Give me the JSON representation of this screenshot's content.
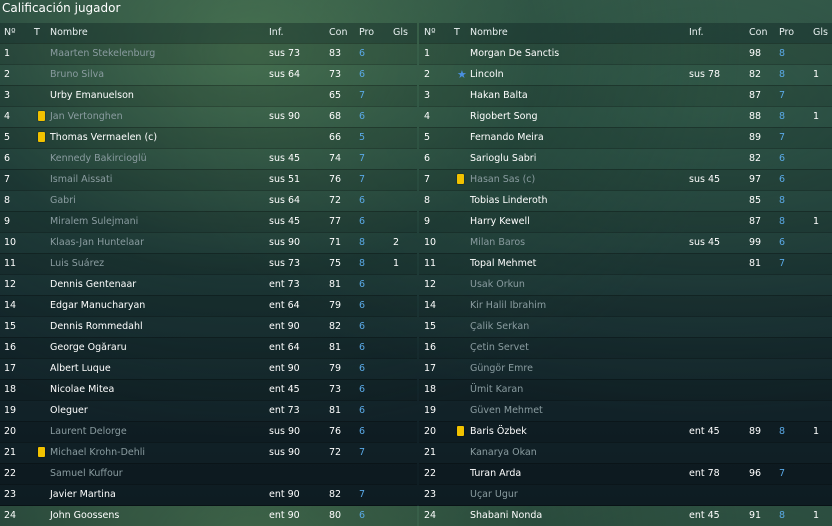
{
  "window": {
    "title": "Calificación jugador"
  },
  "columns": {
    "num": "Nº",
    "t": "T",
    "name": "Nombre",
    "inf": "Inf.",
    "con": "Con",
    "pro": "Pro",
    "gls": "Gls"
  },
  "left": [
    {
      "num": "1",
      "name": "Maarten Stekelenburg",
      "inf": "sus 73",
      "con": "83",
      "pro": "6",
      "gls": "",
      "dim": true,
      "mark": ""
    },
    {
      "num": "2",
      "name": "Bruno Silva",
      "inf": "sus 64",
      "con": "73",
      "pro": "6",
      "gls": "",
      "dim": true,
      "mark": ""
    },
    {
      "num": "3",
      "name": "Urby Emanuelson",
      "inf": "",
      "con": "65",
      "pro": "7",
      "gls": "",
      "dim": false,
      "mark": ""
    },
    {
      "num": "4",
      "name": "Jan Vertonghen",
      "inf": "sus 90",
      "con": "68",
      "pro": "6",
      "gls": "",
      "dim": true,
      "mark": "yellow-card"
    },
    {
      "num": "5",
      "name": "Thomas Vermaelen (c)",
      "inf": "",
      "con": "66",
      "pro": "5",
      "gls": "",
      "dim": false,
      "mark": "yellow-card"
    },
    {
      "num": "6",
      "name": "Kennedy Bakircioglü",
      "inf": "sus 45",
      "con": "74",
      "pro": "7",
      "gls": "",
      "dim": true,
      "mark": ""
    },
    {
      "num": "7",
      "name": "Ismail Aissati",
      "inf": "sus 51",
      "con": "76",
      "pro": "7",
      "gls": "",
      "dim": true,
      "mark": ""
    },
    {
      "num": "8",
      "name": "Gabri",
      "inf": "sus 64",
      "con": "72",
      "pro": "6",
      "gls": "",
      "dim": true,
      "mark": ""
    },
    {
      "num": "9",
      "name": "Miralem Sulejmani",
      "inf": "sus 45",
      "con": "77",
      "pro": "6",
      "gls": "",
      "dim": true,
      "mark": ""
    },
    {
      "num": "10",
      "name": "Klaas-Jan Huntelaar",
      "inf": "sus 90",
      "con": "71",
      "pro": "8",
      "gls": "2",
      "dim": true,
      "mark": ""
    },
    {
      "num": "11",
      "name": "Luis Suárez",
      "inf": "sus 73",
      "con": "75",
      "pro": "8",
      "gls": "1",
      "dim": true,
      "mark": ""
    },
    {
      "num": "12",
      "name": "Dennis Gentenaar",
      "inf": "ent 73",
      "con": "81",
      "pro": "6",
      "gls": "",
      "dim": false,
      "mark": ""
    },
    {
      "num": "14",
      "name": "Edgar Manucharyan",
      "inf": "ent 64",
      "con": "79",
      "pro": "6",
      "gls": "",
      "dim": false,
      "mark": ""
    },
    {
      "num": "15",
      "name": "Dennis Rommedahl",
      "inf": "ent 90",
      "con": "82",
      "pro": "6",
      "gls": "",
      "dim": false,
      "mark": ""
    },
    {
      "num": "16",
      "name": "George Ogăraru",
      "inf": "ent 64",
      "con": "81",
      "pro": "6",
      "gls": "",
      "dim": false,
      "mark": ""
    },
    {
      "num": "17",
      "name": "Albert Luque",
      "inf": "ent 90",
      "con": "79",
      "pro": "6",
      "gls": "",
      "dim": false,
      "mark": ""
    },
    {
      "num": "18",
      "name": "Nicolae Mitea",
      "inf": "ent 45",
      "con": "73",
      "pro": "6",
      "gls": "",
      "dim": false,
      "mark": ""
    },
    {
      "num": "19",
      "name": "Oleguer",
      "inf": "ent 73",
      "con": "81",
      "pro": "6",
      "gls": "",
      "dim": false,
      "mark": ""
    },
    {
      "num": "20",
      "name": "Laurent Delorge",
      "inf": "sus 90",
      "con": "76",
      "pro": "6",
      "gls": "",
      "dim": true,
      "mark": ""
    },
    {
      "num": "21",
      "name": "Michael Krohn-Dehli",
      "inf": "sus 90",
      "con": "72",
      "pro": "7",
      "gls": "",
      "dim": true,
      "mark": "yellow-card"
    },
    {
      "num": "22",
      "name": "Samuel Kuffour",
      "inf": "",
      "con": "",
      "pro": "",
      "gls": "",
      "dim": true,
      "mark": ""
    },
    {
      "num": "23",
      "name": "Javier Martina",
      "inf": "ent 90",
      "con": "82",
      "pro": "7",
      "gls": "",
      "dim": false,
      "mark": ""
    },
    {
      "num": "24",
      "name": "John Goossens",
      "inf": "ent 90",
      "con": "80",
      "pro": "6",
      "gls": "",
      "dim": false,
      "mark": ""
    }
  ],
  "right": [
    {
      "num": "1",
      "name": "Morgan De Sanctis",
      "inf": "",
      "con": "98",
      "pro": "8",
      "gls": "",
      "dim": false,
      "mark": ""
    },
    {
      "num": "2",
      "name": "Lincoln",
      "inf": "sus 78",
      "con": "82",
      "pro": "8",
      "gls": "1",
      "dim": false,
      "mark": "star"
    },
    {
      "num": "3",
      "name": "Hakan Balta",
      "inf": "",
      "con": "87",
      "pro": "7",
      "gls": "",
      "dim": false,
      "mark": ""
    },
    {
      "num": "4",
      "name": "Rigobert Song",
      "inf": "",
      "con": "88",
      "pro": "8",
      "gls": "1",
      "dim": false,
      "mark": ""
    },
    {
      "num": "5",
      "name": "Fernando Meira",
      "inf": "",
      "con": "89",
      "pro": "7",
      "gls": "",
      "dim": false,
      "mark": ""
    },
    {
      "num": "6",
      "name": "Sarioglu Sabri",
      "inf": "",
      "con": "82",
      "pro": "6",
      "gls": "",
      "dim": false,
      "mark": ""
    },
    {
      "num": "7",
      "name": "Hasan Sas (c)",
      "inf": "sus 45",
      "con": "97",
      "pro": "6",
      "gls": "",
      "dim": true,
      "mark": "yellow-card"
    },
    {
      "num": "8",
      "name": "Tobias Linderoth",
      "inf": "",
      "con": "85",
      "pro": "8",
      "gls": "",
      "dim": false,
      "mark": ""
    },
    {
      "num": "9",
      "name": "Harry Kewell",
      "inf": "",
      "con": "87",
      "pro": "8",
      "gls": "1",
      "dim": false,
      "mark": ""
    },
    {
      "num": "10",
      "name": "Milan Baros",
      "inf": "sus 45",
      "con": "99",
      "pro": "6",
      "gls": "",
      "dim": true,
      "mark": ""
    },
    {
      "num": "11",
      "name": "Topal Mehmet",
      "inf": "",
      "con": "81",
      "pro": "7",
      "gls": "",
      "dim": false,
      "mark": ""
    },
    {
      "num": "12",
      "name": "Usak Orkun",
      "inf": "",
      "con": "",
      "pro": "",
      "gls": "",
      "dim": true,
      "mark": ""
    },
    {
      "num": "14",
      "name": "Kir Halil Ibrahim",
      "inf": "",
      "con": "",
      "pro": "",
      "gls": "",
      "dim": true,
      "mark": ""
    },
    {
      "num": "15",
      "name": "Çalik Serkan",
      "inf": "",
      "con": "",
      "pro": "",
      "gls": "",
      "dim": true,
      "mark": ""
    },
    {
      "num": "16",
      "name": "Çetin Servet",
      "inf": "",
      "con": "",
      "pro": "",
      "gls": "",
      "dim": true,
      "mark": ""
    },
    {
      "num": "17",
      "name": "Güngör Emre",
      "inf": "",
      "con": "",
      "pro": "",
      "gls": "",
      "dim": true,
      "mark": ""
    },
    {
      "num": "18",
      "name": "Ümit Karan",
      "inf": "",
      "con": "",
      "pro": "",
      "gls": "",
      "dim": true,
      "mark": ""
    },
    {
      "num": "19",
      "name": "Güven Mehmet",
      "inf": "",
      "con": "",
      "pro": "",
      "gls": "",
      "dim": true,
      "mark": ""
    },
    {
      "num": "20",
      "name": "Baris Özbek",
      "inf": "ent 45",
      "con": "89",
      "pro": "8",
      "gls": "1",
      "dim": false,
      "mark": "yellow-card"
    },
    {
      "num": "21",
      "name": "Kanarya Okan",
      "inf": "",
      "con": "",
      "pro": "",
      "gls": "",
      "dim": true,
      "mark": ""
    },
    {
      "num": "22",
      "name": "Turan Arda",
      "inf": "ent 78",
      "con": "96",
      "pro": "7",
      "gls": "",
      "dim": false,
      "mark": ""
    },
    {
      "num": "23",
      "name": "Uçar Ugur",
      "inf": "",
      "con": "",
      "pro": "",
      "gls": "",
      "dim": true,
      "mark": ""
    },
    {
      "num": "24",
      "name": "Shabani Nonda",
      "inf": "ent 45",
      "con": "91",
      "pro": "8",
      "gls": "1",
      "dim": false,
      "mark": ""
    }
  ]
}
